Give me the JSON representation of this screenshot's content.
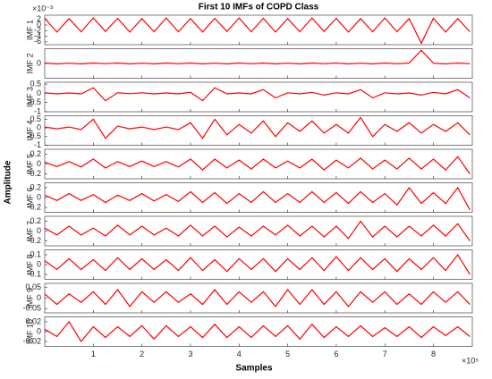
{
  "chart_data": {
    "type": "line",
    "title": "First 10 IMFs of COPD Class",
    "xlabel": "Samples",
    "ylabel": "Amplitude",
    "x_multiplier": "×10⁵",
    "color": "#ff0000",
    "grid": false,
    "x": [
      0,
      25000,
      50000,
      75000,
      100000,
      125000,
      150000,
      175000,
      200000,
      225000,
      250000,
      275000,
      300000,
      325000,
      350000,
      375000,
      400000,
      425000,
      450000,
      475000,
      500000,
      525000,
      550000,
      575000,
      600000,
      625000,
      650000,
      675000,
      700000,
      725000,
      750000,
      775000,
      800000,
      825000,
      850000,
      875000
    ],
    "xlim": [
      0,
      880000
    ],
    "xticks": [
      {
        "value": 100000,
        "label": "1"
      },
      {
        "value": 200000,
        "label": "2"
      },
      {
        "value": 300000,
        "label": "3"
      },
      {
        "value": 400000,
        "label": "4"
      },
      {
        "value": 500000,
        "label": "5"
      },
      {
        "value": 600000,
        "label": "6"
      },
      {
        "value": 700000,
        "label": "7"
      },
      {
        "value": 800000,
        "label": "8"
      }
    ],
    "panels": [
      {
        "name": "IMF 1",
        "y_multiplier": "×10⁻³",
        "ylim": [
          -7,
          3.5
        ],
        "yticks": [
          2,
          0,
          -2,
          -4,
          -6
        ],
        "values": [
          2.4,
          -2.5,
          2.3,
          -2.4,
          2.5,
          -2.3,
          2.4,
          -2.5,
          2.3,
          -2.4,
          2.5,
          -2.4,
          2.3,
          -2.5,
          2.4,
          -2.3,
          2.5,
          -2.4,
          2.4,
          -2.5,
          2.3,
          -2.4,
          2.5,
          -2.3,
          2.4,
          -2.5,
          2.3,
          -2.4,
          2.5,
          -2.4,
          2.3,
          -6.5,
          2.4,
          -2.5,
          2.3,
          -2.4
        ]
      },
      {
        "name": "IMF 2",
        "ylim": [
          -1,
          1
        ],
        "yticks": [
          0
        ],
        "values": [
          0.03,
          -0.03,
          0.02,
          -0.03,
          0.03,
          -0.02,
          0.03,
          -0.03,
          0.02,
          -0.03,
          0.03,
          -0.02,
          0.03,
          -0.03,
          0.02,
          -0.03,
          0.03,
          -0.02,
          0.03,
          -0.03,
          0.02,
          -0.03,
          0.03,
          -0.02,
          0.03,
          -0.03,
          0.02,
          -0.03,
          0.03,
          -0.02,
          0.03,
          0.9,
          0.02,
          -0.03,
          0.03,
          -0.02
        ]
      },
      {
        "name": "IMF 3",
        "ylim": [
          -1,
          0.6
        ],
        "yticks": [
          0.5,
          0,
          -0.5,
          -1
        ],
        "values": [
          0.03,
          -0.03,
          0.02,
          -0.03,
          0.3,
          -0.4,
          0.03,
          -0.02,
          0.03,
          -0.03,
          0.02,
          -0.03,
          0.05,
          -0.4,
          0.3,
          -0.03,
          0.02,
          -0.03,
          0.2,
          -0.25,
          0.03,
          -0.03,
          0.05,
          -0.1,
          0.03,
          -0.03,
          0.2,
          -0.25,
          0.03,
          -0.03,
          0.02,
          -0.1,
          0.05,
          -0.03,
          0.2,
          -0.25
        ]
      },
      {
        "name": "IMF 4",
        "ylim": [
          -1,
          0.7
        ],
        "yticks": [
          0.5,
          0,
          -0.5,
          -1
        ],
        "values": [
          0.05,
          -0.05,
          0.05,
          -0.1,
          0.5,
          -0.6,
          0.1,
          -0.05,
          0.05,
          -0.1,
          0.05,
          -0.1,
          0.3,
          -0.6,
          0.5,
          -0.4,
          0.2,
          -0.3,
          0.4,
          -0.5,
          0.3,
          -0.2,
          0.4,
          -0.3,
          0.2,
          -0.3,
          0.6,
          -0.5,
          0.2,
          -0.2,
          0.3,
          -0.3,
          0.2,
          -0.2,
          0.3,
          -0.4
        ]
      },
      {
        "name": "IMF 5",
        "ylim": [
          -0.3,
          0.3
        ],
        "yticks": [
          0.2,
          0,
          -0.2
        ],
        "values": [
          0.04,
          -0.05,
          0.05,
          -0.06,
          0.1,
          -0.08,
          0.05,
          -0.05,
          0.06,
          -0.05,
          0.05,
          -0.06,
          0.1,
          -0.12,
          0.1,
          -0.08,
          0.08,
          -0.1,
          0.1,
          -0.08,
          0.06,
          -0.08,
          0.1,
          -0.12,
          0.08,
          -0.08,
          0.12,
          -0.1,
          0.08,
          -0.1,
          0.12,
          -0.1,
          0.1,
          -0.12,
          0.15,
          -0.2
        ]
      },
      {
        "name": "IMF 6",
        "ylim": [
          -0.3,
          0.3
        ],
        "yticks": [
          0.2,
          0,
          -0.2
        ],
        "values": [
          0.05,
          -0.06,
          0.08,
          -0.06,
          0.06,
          -0.1,
          0.05,
          -0.06,
          0.08,
          -0.07,
          0.06,
          -0.08,
          0.12,
          -0.1,
          0.1,
          -0.12,
          0.08,
          -0.1,
          0.12,
          -0.1,
          0.08,
          -0.1,
          0.12,
          -0.1,
          0.1,
          -0.12,
          0.12,
          -0.1,
          0.08,
          -0.15,
          0.2,
          -0.12,
          0.1,
          -0.12,
          0.2,
          -0.25
        ]
      },
      {
        "name": "IMF 7",
        "ylim": [
          -0.3,
          0.3
        ],
        "yticks": [
          0.2,
          0,
          -0.2
        ],
        "values": [
          0.06,
          -0.08,
          0.1,
          -0.08,
          0.06,
          -0.1,
          0.12,
          -0.08,
          0.1,
          -0.08,
          0.06,
          -0.1,
          0.12,
          -0.1,
          0.1,
          -0.12,
          0.08,
          -0.1,
          0.1,
          -0.08,
          0.12,
          -0.1,
          0.1,
          -0.12,
          0.1,
          -0.15,
          0.2,
          -0.12,
          0.1,
          -0.12,
          0.1,
          -0.1,
          0.12,
          -0.1,
          0.15,
          -0.2
        ]
      },
      {
        "name": "IMF 8",
        "ylim": [
          -0.15,
          0.15
        ],
        "yticks": [
          0.1,
          0,
          -0.1
        ],
        "values": [
          0.04,
          -0.05,
          0.06,
          -0.05,
          0.05,
          -0.06,
          0.07,
          -0.05,
          0.06,
          -0.05,
          0.05,
          -0.06,
          0.07,
          -0.06,
          0.05,
          -0.07,
          0.06,
          -0.05,
          0.06,
          -0.07,
          0.06,
          -0.05,
          0.07,
          -0.06,
          0.08,
          -0.06,
          0.07,
          -0.05,
          0.06,
          -0.07,
          0.06,
          -0.05,
          0.07,
          -0.06,
          0.1,
          -0.1
        ]
      },
      {
        "name": "IMF 9",
        "ylim": [
          -0.07,
          0.07
        ],
        "yticks": [
          0.05,
          0,
          -0.05
        ],
        "values": [
          0.02,
          -0.03,
          0.02,
          -0.02,
          0.03,
          -0.03,
          0.04,
          -0.04,
          0.03,
          -0.02,
          0.03,
          -0.02,
          0.02,
          -0.03,
          0.04,
          -0.03,
          0.03,
          -0.02,
          0.03,
          -0.04,
          0.04,
          -0.03,
          0.04,
          -0.03,
          0.03,
          -0.04,
          0.03,
          -0.02,
          0.03,
          -0.03,
          0.02,
          -0.03,
          0.03,
          -0.02,
          0.03,
          -0.03
        ]
      },
      {
        "name": "IMF 10",
        "ylim": [
          -0.03,
          0.03
        ],
        "yticks": [
          0.02,
          0,
          -0.02
        ],
        "values": [
          0.005,
          -0.01,
          0.02,
          -0.02,
          0.01,
          -0.012,
          0.01,
          -0.01,
          0.012,
          -0.015,
          0.012,
          -0.01,
          0.01,
          -0.012,
          0.015,
          -0.012,
          0.01,
          -0.012,
          0.012,
          -0.01,
          0.012,
          -0.015,
          0.015,
          -0.012,
          0.01,
          -0.01,
          0.012,
          -0.01,
          0.008,
          -0.01,
          0.01,
          -0.012,
          0.01,
          -0.008,
          0.01,
          -0.01
        ]
      }
    ]
  }
}
